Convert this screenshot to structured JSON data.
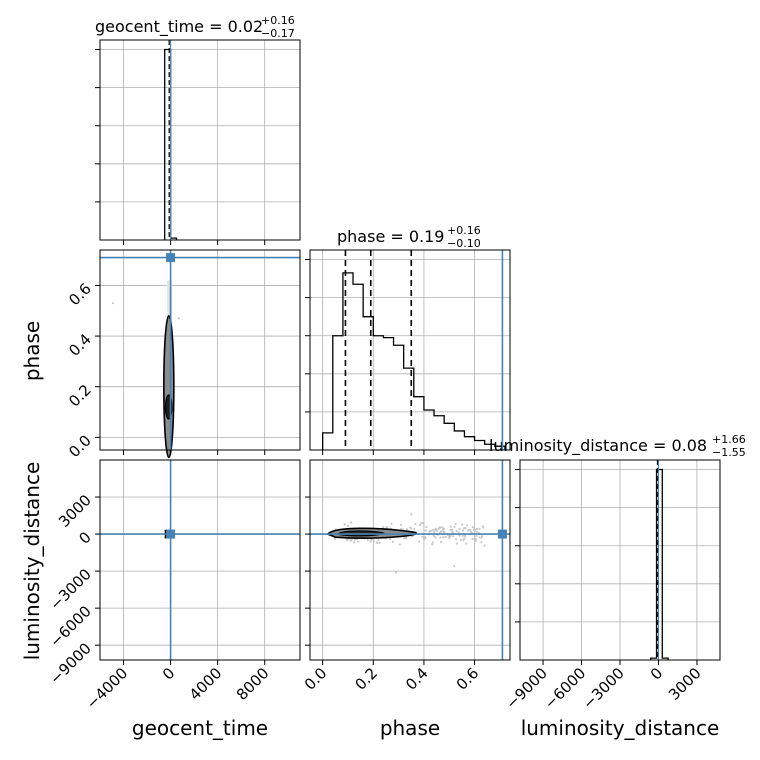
{
  "chart_data": {
    "type": "corner",
    "parameters": [
      {
        "name": "geocent_time",
        "median": "0.02",
        "plus": "+0.16",
        "minus": "−0.17",
        "truth": 0
      },
      {
        "name": "phase",
        "median": "0.19",
        "plus": "+0.16",
        "minus": "−0.10",
        "truth": 0.71
      },
      {
        "name": "luminosity_distance",
        "median": "0.08",
        "plus": "+1.66",
        "minus": "−1.55",
        "truth": 0
      }
    ],
    "titles": {
      "geocent_time": {
        "prefix": "geocent_time = 0.02",
        "sup": "+0.16",
        "sub": "−0.17"
      },
      "phase": {
        "prefix": "phase = 0.19",
        "sup": "+0.16",
        "sub": "−0.10"
      },
      "luminosity_distance": {
        "prefix": "luminosity_distance = 0.08",
        "sup": "+1.66",
        "sub": "−1.55"
      }
    },
    "axis_labels": {
      "x": [
        "geocent_time",
        "phase",
        "luminosity_distance"
      ],
      "y": [
        "phase",
        "luminosity_distance"
      ]
    },
    "ranges": {
      "geocent_time": [
        -6000,
        11000
      ],
      "phase": [
        -0.05,
        0.74
      ],
      "luminosity_distance_y": [
        -10200,
        6000
      ],
      "luminosity_distance_x": [
        -10800,
        4800
      ]
    },
    "ticks": {
      "geocent_time_x": [
        {
          "v": -4000,
          "l": "−4000"
        },
        {
          "v": 0,
          "l": "0"
        },
        {
          "v": 4000,
          "l": "4000"
        },
        {
          "v": 8000,
          "l": "8000"
        }
      ],
      "phase_x": [
        {
          "v": 0.0,
          "l": "0.0"
        },
        {
          "v": 0.2,
          "l": "0.2"
        },
        {
          "v": 0.4,
          "l": "0.4"
        },
        {
          "v": 0.6,
          "l": "0.6"
        }
      ],
      "phase_y": [
        {
          "v": 0.0,
          "l": "0.0"
        },
        {
          "v": 0.2,
          "l": "0.2"
        },
        {
          "v": 0.4,
          "l": "0.4"
        },
        {
          "v": 0.6,
          "l": "0.6"
        }
      ],
      "ld_y": [
        {
          "v": 3000,
          "l": "3000"
        },
        {
          "v": 0,
          "l": "0"
        },
        {
          "v": -3000,
          "l": "−3000"
        },
        {
          "v": -6000,
          "l": "−6000"
        },
        {
          "v": -9000,
          "l": "−9000"
        }
      ],
      "ld_x": [
        {
          "v": -9000,
          "l": "−9000"
        },
        {
          "v": -6000,
          "l": "−6000"
        },
        {
          "v": -3000,
          "l": "−3000"
        },
        {
          "v": 0,
          "l": "0"
        },
        {
          "v": 3000,
          "l": "3000"
        }
      ]
    },
    "hist_geocent_time": {
      "edges": [
        -500,
        0,
        500
      ],
      "counts": [
        1.0,
        0.01
      ],
      "ymax": 1.05
    },
    "hist_phase": {
      "edges": [
        0.0,
        0.04,
        0.08,
        0.12,
        0.16,
        0.2,
        0.24,
        0.28,
        0.32,
        0.36,
        0.4,
        0.44,
        0.48,
        0.52,
        0.56,
        0.6,
        0.64,
        0.68,
        0.72
      ],
      "counts": [
        0.09,
        0.6,
        0.93,
        0.87,
        0.7,
        0.6,
        0.59,
        0.55,
        0.43,
        0.28,
        0.21,
        0.18,
        0.14,
        0.1,
        0.07,
        0.05,
        0.03,
        0.02
      ],
      "ymax": 1.05,
      "quantiles": [
        0.09,
        0.19,
        0.35
      ]
    },
    "hist_luminosity_distance": {
      "edges": [
        -600,
        -150,
        300,
        750
      ],
      "counts": [
        0.01,
        1.0,
        0.01
      ],
      "ymax": 1.05
    },
    "colors": {
      "truth": "#4682b4",
      "hist": "#000000",
      "grid": "#b0b0b0",
      "scatter": "#c8c8c8"
    },
    "grid": true
  }
}
